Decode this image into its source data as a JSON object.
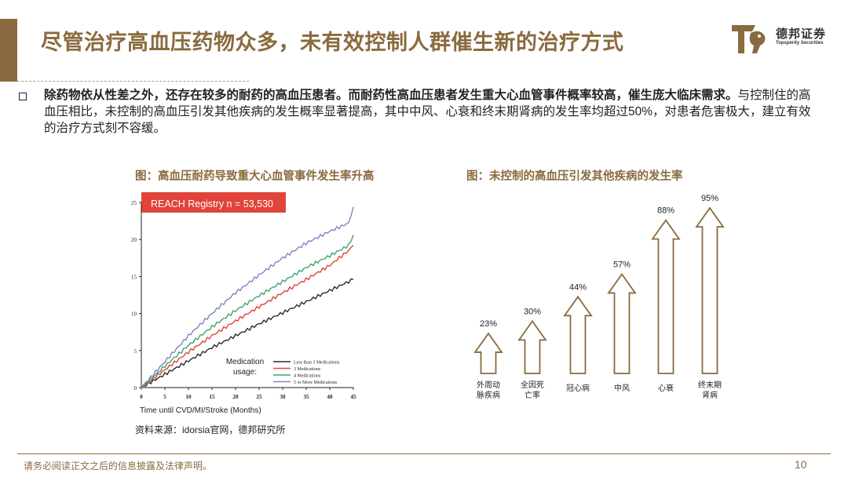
{
  "header": {
    "title": "尽管治疗高血压药物众多，未有效控制人群催生新的治疗方式",
    "logo_cn": "德邦证券",
    "logo_en": "Topsperity Securities"
  },
  "bullet": {
    "bold": "除药物依从性差之外，还存在较多的耐药的高血压患者。而耐药性高血压患者发生重大心血管事件概率较高，催生庞大临床需求。",
    "normal": "与控制住的高血压相比，未控制的高血压引发其他疾病的发生概率显著提高，其中中风、心衰和终末期肾病的发生率均超过50%，对患者危害极大，建立有效的治疗方式刻不容缓。"
  },
  "colors": {
    "brand": "#8a6a3e",
    "red": "#e0443a",
    "blue": "#7b86c2",
    "green": "#3fa36c",
    "black": "#2b2b2b"
  },
  "chart_data": [
    {
      "type": "line",
      "title": "图：高血压耐药导致重大心血管事件发生率升高",
      "banner": "REACH Registry n = 53,530",
      "xlabel": "Time until CVD/MI/Stroke (Months)",
      "ylabel": "",
      "x_ticks": [
        0,
        5,
        10,
        15,
        20,
        25,
        30,
        35,
        40,
        45
      ],
      "y_ticks": [
        0,
        5,
        10,
        15,
        20,
        25
      ],
      "xlim": [
        0,
        45
      ],
      "ylim": [
        0,
        25
      ],
      "legend_title": "Medication usage:",
      "series": [
        {
          "name": "Less than 3 Medications",
          "color": "#2b2b2b",
          "x": [
            0,
            5,
            10,
            15,
            20,
            25,
            30,
            35,
            40,
            44,
            45
          ],
          "y": [
            0,
            1.8,
            3.6,
            5.4,
            7,
            8.6,
            10.1,
            11.6,
            13.1,
            14.3,
            14.6
          ]
        },
        {
          "name": "3 Medications",
          "color": "#e0443a",
          "x": [
            0,
            5,
            10,
            15,
            20,
            25,
            30,
            35,
            40,
            44,
            45
          ],
          "y": [
            0,
            2.4,
            4.8,
            7,
            9,
            10.9,
            12.8,
            14.6,
            16.5,
            18.5,
            19.2
          ]
        },
        {
          "name": "4 Medications",
          "color": "#3fa36c",
          "x": [
            0,
            5,
            10,
            15,
            20,
            25,
            30,
            35,
            40,
            44,
            45
          ],
          "y": [
            0,
            2.9,
            5.7,
            8.2,
            10.4,
            12.4,
            14.3,
            16.2,
            17.8,
            19.2,
            20.6
          ]
        },
        {
          "name": "5 or More Medications",
          "color": "#7b86c2",
          "x": [
            0,
            5,
            10,
            15,
            20,
            25,
            30,
            35,
            40,
            44,
            45
          ],
          "y": [
            0,
            3.5,
            7,
            10,
            12.8,
            15.2,
            17.5,
            19.5,
            21.1,
            22.2,
            24.4
          ]
        }
      ]
    },
    {
      "type": "bar",
      "title": "图：未控制的高血压引发其他疾病的发生率",
      "categories": [
        "外周动脉疾病",
        "全因死亡率",
        "冠心病",
        "中风",
        "心衰",
        "终末期肾病"
      ],
      "values": [
        23,
        30,
        44,
        57,
        88,
        95
      ],
      "labels": [
        "23%",
        "30%",
        "44%",
        "57%",
        "88%",
        "95%"
      ],
      "ylim": [
        0,
        100
      ]
    }
  ],
  "footer": {
    "source": "资料来源：idorsia官网，德邦研究所",
    "disclaimer": "请务必阅读正文之后的信息披露及法律声明。",
    "page": "10"
  }
}
